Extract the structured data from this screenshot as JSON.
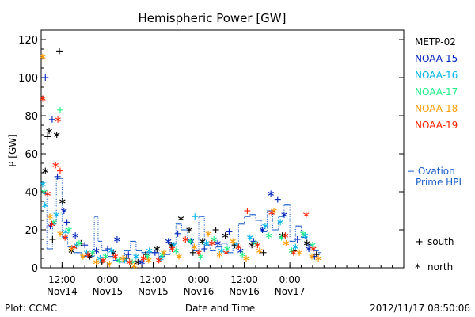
{
  "chart_data": {
    "type": "scatter",
    "title": "Hemispheric Power [GW]",
    "ylabel": "P [GW]",
    "xlabel": "Date and Time",
    "ylim": [
      0,
      125
    ],
    "yticks": [
      0,
      20,
      40,
      60,
      80,
      100,
      120
    ],
    "xlim": [
      6.5,
      102
    ],
    "xticks": [
      {
        "value": 12,
        "time": "12:00",
        "date": "Nov14"
      },
      {
        "value": 24,
        "time": "0:00",
        "date": "Nov15"
      },
      {
        "value": 36,
        "time": "12:00",
        "date": "Nov15"
      },
      {
        "value": 48,
        "time": "0:00",
        "date": "Nov16"
      },
      {
        "value": 60,
        "time": "12:00",
        "date": "Nov16"
      },
      {
        "value": 72,
        "time": "0:00",
        "date": "Nov17"
      }
    ],
    "x_units": "hours since 2012-11-14 00:00 UTC",
    "series": [
      {
        "name": "METP-02",
        "color": "#000000",
        "points": [
          {
            "x": 7.6,
            "y": 51,
            "m": "north"
          },
          {
            "x": 8.2,
            "y": 69,
            "m": "south"
          },
          {
            "x": 8.6,
            "y": 72,
            "m": "north"
          },
          {
            "x": 10.6,
            "y": 70,
            "m": "north"
          },
          {
            "x": 11.3,
            "y": 114,
            "m": "south"
          },
          {
            "x": 12.1,
            "y": 35,
            "m": "north"
          },
          {
            "x": 9.5,
            "y": 15,
            "m": "south"
          },
          {
            "x": 14.5,
            "y": 9,
            "m": "north"
          },
          {
            "x": 17,
            "y": 13,
            "m": "south"
          },
          {
            "x": 19.3,
            "y": 6,
            "m": "north"
          },
          {
            "x": 22.5,
            "y": 3,
            "m": "south"
          },
          {
            "x": 25.5,
            "y": 8,
            "m": "north"
          },
          {
            "x": 29,
            "y": 5,
            "m": "south"
          },
          {
            "x": 32,
            "y": 3,
            "m": "north"
          },
          {
            "x": 34,
            "y": 7,
            "m": "south"
          },
          {
            "x": 37,
            "y": 10,
            "m": "north"
          },
          {
            "x": 40.8,
            "y": 12,
            "m": "north"
          },
          {
            "x": 43.3,
            "y": 26,
            "m": "north"
          },
          {
            "x": 45.5,
            "y": 20,
            "m": "north"
          },
          {
            "x": 46.5,
            "y": 8,
            "m": "south"
          },
          {
            "x": 49,
            "y": 14,
            "m": "north"
          },
          {
            "x": 52.5,
            "y": 20,
            "m": "south"
          },
          {
            "x": 55,
            "y": 17,
            "m": "north"
          },
          {
            "x": 57.5,
            "y": 12,
            "m": "south"
          },
          {
            "x": 62,
            "y": 12,
            "m": "north"
          },
          {
            "x": 65,
            "y": 8,
            "m": "south"
          },
          {
            "x": 70,
            "y": 17,
            "m": "north"
          },
          {
            "x": 73,
            "y": 9,
            "m": "south"
          },
          {
            "x": 76.5,
            "y": 13,
            "m": "north"
          },
          {
            "x": 79,
            "y": 7,
            "m": "south"
          }
        ]
      },
      {
        "name": "NOAA-15",
        "color": "#0022bb",
        "points": [
          {
            "x": 7.6,
            "y": 100,
            "m": "south"
          },
          {
            "x": 9.4,
            "y": 78,
            "m": "south"
          },
          {
            "x": 10.8,
            "y": 48,
            "m": "south"
          },
          {
            "x": 8.9,
            "y": 22,
            "m": "north"
          },
          {
            "x": 12.5,
            "y": 30,
            "m": "north"
          },
          {
            "x": 13.3,
            "y": 24,
            "m": "south"
          },
          {
            "x": 15.5,
            "y": 17,
            "m": "north"
          },
          {
            "x": 18,
            "y": 12,
            "m": "south"
          },
          {
            "x": 21,
            "y": 9,
            "m": "north"
          },
          {
            "x": 24,
            "y": 10,
            "m": "south"
          },
          {
            "x": 26.5,
            "y": 15,
            "m": "north"
          },
          {
            "x": 29.5,
            "y": 7,
            "m": "south"
          },
          {
            "x": 33,
            "y": 3,
            "m": "north"
          },
          {
            "x": 36.5,
            "y": 8,
            "m": "south"
          },
          {
            "x": 40,
            "y": 14,
            "m": "north"
          },
          {
            "x": 42.5,
            "y": 18,
            "m": "south"
          },
          {
            "x": 46,
            "y": 14,
            "m": "north"
          },
          {
            "x": 49.5,
            "y": 10,
            "m": "south"
          },
          {
            "x": 53,
            "y": 13,
            "m": "north"
          },
          {
            "x": 56,
            "y": 19,
            "m": "south"
          },
          {
            "x": 59,
            "y": 9,
            "m": "north"
          },
          {
            "x": 62.5,
            "y": 14,
            "m": "south"
          },
          {
            "x": 64.8,
            "y": 20,
            "m": "north"
          },
          {
            "x": 67,
            "y": 39,
            "m": "north"
          },
          {
            "x": 68.8,
            "y": 36,
            "m": "south"
          },
          {
            "x": 70.5,
            "y": 28,
            "m": "north"
          },
          {
            "x": 74,
            "y": 15,
            "m": "south"
          },
          {
            "x": 77,
            "y": 10,
            "m": "north"
          },
          {
            "x": 78.5,
            "y": 6,
            "m": "south"
          }
        ]
      },
      {
        "name": "NOAA-16",
        "color": "#00b4e8",
        "points": [
          {
            "x": 6.9,
            "y": 44,
            "m": "north"
          },
          {
            "x": 7.5,
            "y": 33,
            "m": "north"
          },
          {
            "x": 10.5,
            "y": 28,
            "m": "north"
          },
          {
            "x": 13,
            "y": 19,
            "m": "north"
          },
          {
            "x": 15.8,
            "y": 12,
            "m": "north"
          },
          {
            "x": 18.5,
            "y": 8,
            "m": "north"
          },
          {
            "x": 22,
            "y": 5,
            "m": "north"
          },
          {
            "x": 25,
            "y": 9,
            "m": "north"
          },
          {
            "x": 28.5,
            "y": 4,
            "m": "north"
          },
          {
            "x": 31.5,
            "y": 6,
            "m": "north"
          },
          {
            "x": 35,
            "y": 9,
            "m": "north"
          },
          {
            "x": 38,
            "y": 5,
            "m": "north"
          },
          {
            "x": 41.5,
            "y": 12,
            "m": "north"
          },
          {
            "x": 47,
            "y": 27,
            "m": "south"
          },
          {
            "x": 50,
            "y": 13,
            "m": "north"
          },
          {
            "x": 54,
            "y": 9,
            "m": "north"
          },
          {
            "x": 58,
            "y": 12,
            "m": "north"
          },
          {
            "x": 61.5,
            "y": 16,
            "m": "north"
          },
          {
            "x": 65.5,
            "y": 22,
            "m": "north"
          },
          {
            "x": 69.5,
            "y": 24,
            "m": "north"
          },
          {
            "x": 73.5,
            "y": 11,
            "m": "north"
          },
          {
            "x": 76,
            "y": 17,
            "m": "north"
          }
        ]
      },
      {
        "name": "NOAA-17",
        "color": "#22ee88",
        "points": [
          {
            "x": 7.3,
            "y": 40,
            "m": "north"
          },
          {
            "x": 11.5,
            "y": 83,
            "m": "south"
          },
          {
            "x": 9.8,
            "y": 24,
            "m": "north"
          },
          {
            "x": 13.8,
            "y": 20,
            "m": "north"
          },
          {
            "x": 16.5,
            "y": 13,
            "m": "north"
          },
          {
            "x": 20,
            "y": 8,
            "m": "north"
          },
          {
            "x": 23.5,
            "y": 6,
            "m": "north"
          },
          {
            "x": 27,
            "y": 4,
            "m": "north"
          },
          {
            "x": 30.5,
            "y": 3,
            "m": "north"
          },
          {
            "x": 34.5,
            "y": 6,
            "m": "north"
          },
          {
            "x": 38.5,
            "y": 7,
            "m": "north"
          },
          {
            "x": 42,
            "y": 9,
            "m": "north"
          },
          {
            "x": 45.8,
            "y": 14,
            "m": "north"
          },
          {
            "x": 48.5,
            "y": 6,
            "m": "north"
          },
          {
            "x": 52,
            "y": 15,
            "m": "north"
          },
          {
            "x": 55.5,
            "y": 10,
            "m": "north"
          },
          {
            "x": 59.5,
            "y": 7,
            "m": "north"
          },
          {
            "x": 63,
            "y": 13,
            "m": "north"
          },
          {
            "x": 66.5,
            "y": 17,
            "m": "north"
          },
          {
            "x": 69.8,
            "y": 16,
            "m": "north"
          },
          {
            "x": 72.5,
            "y": 9,
            "m": "north"
          },
          {
            "x": 75.5,
            "y": 18,
            "m": "north"
          },
          {
            "x": 78,
            "y": 12,
            "m": "north"
          }
        ]
      },
      {
        "name": "NOAA-18",
        "color": "#ff9a00",
        "points": [
          {
            "x": 6.9,
            "y": 111,
            "m": "north"
          },
          {
            "x": 8.8,
            "y": 27,
            "m": "north"
          },
          {
            "x": 11.5,
            "y": 18,
            "m": "north"
          },
          {
            "x": 14.5,
            "y": 10,
            "m": "north"
          },
          {
            "x": 17.5,
            "y": 6,
            "m": "north"
          },
          {
            "x": 21,
            "y": 3,
            "m": "north"
          },
          {
            "x": 24.5,
            "y": 2,
            "m": "north"
          },
          {
            "x": 28,
            "y": 5,
            "m": "north"
          },
          {
            "x": 31,
            "y": 1,
            "m": "north"
          },
          {
            "x": 34.8,
            "y": 4,
            "m": "north"
          },
          {
            "x": 38.8,
            "y": 8,
            "m": "north"
          },
          {
            "x": 42.8,
            "y": 6,
            "m": "north"
          },
          {
            "x": 46.8,
            "y": 11,
            "m": "north"
          },
          {
            "x": 50.5,
            "y": 18,
            "m": "north"
          },
          {
            "x": 53.5,
            "y": 7,
            "m": "north"
          },
          {
            "x": 57,
            "y": 14,
            "m": "north"
          },
          {
            "x": 60.5,
            "y": 5,
            "m": "north"
          },
          {
            "x": 64,
            "y": 9,
            "m": "north"
          },
          {
            "x": 67.8,
            "y": 30,
            "m": "north"
          },
          {
            "x": 71,
            "y": 13,
            "m": "north"
          },
          {
            "x": 74.5,
            "y": 8,
            "m": "north"
          },
          {
            "x": 77.8,
            "y": 6,
            "m": "north"
          },
          {
            "x": 79.5,
            "y": 5,
            "m": "north"
          }
        ]
      },
      {
        "name": "NOAA-19",
        "color": "#ff2200",
        "points": [
          {
            "x": 6.9,
            "y": 89,
            "m": "north"
          },
          {
            "x": 8.2,
            "y": 39,
            "m": "north"
          },
          {
            "x": 10.3,
            "y": 54,
            "m": "north"
          },
          {
            "x": 10.9,
            "y": 78,
            "m": "north"
          },
          {
            "x": 11.5,
            "y": 51,
            "m": "south"
          },
          {
            "x": 9.3,
            "y": 23,
            "m": "north"
          },
          {
            "x": 12.8,
            "y": 16,
            "m": "north"
          },
          {
            "x": 15.2,
            "y": 11,
            "m": "north"
          },
          {
            "x": 18.8,
            "y": 7,
            "m": "north"
          },
          {
            "x": 22.8,
            "y": 4,
            "m": "north"
          },
          {
            "x": 26,
            "y": 6,
            "m": "north"
          },
          {
            "x": 29.8,
            "y": 3,
            "m": "north"
          },
          {
            "x": 33.5,
            "y": 5,
            "m": "north"
          },
          {
            "x": 37.5,
            "y": 4,
            "m": "north"
          },
          {
            "x": 41,
            "y": 10,
            "m": "north"
          },
          {
            "x": 44.5,
            "y": 15,
            "m": "north"
          },
          {
            "x": 48,
            "y": 8,
            "m": "north"
          },
          {
            "x": 51.5,
            "y": 13,
            "m": "north"
          },
          {
            "x": 55.2,
            "y": 8,
            "m": "north"
          },
          {
            "x": 58.5,
            "y": 11,
            "m": "north"
          },
          {
            "x": 60.8,
            "y": 30,
            "m": "south"
          },
          {
            "x": 63.5,
            "y": 12,
            "m": "north"
          },
          {
            "x": 67.2,
            "y": 29,
            "m": "north"
          },
          {
            "x": 70.8,
            "y": 17,
            "m": "north"
          },
          {
            "x": 73,
            "y": 8,
            "m": "north"
          },
          {
            "x": 76.3,
            "y": 28,
            "m": "north"
          },
          {
            "x": 78.2,
            "y": 10,
            "m": "north"
          }
        ]
      }
    ],
    "ovation": {
      "name": "− Ovation Prime HPI",
      "name_line1": "− Ovation",
      "name_line2": "Prime HPI",
      "color": "#1a5cc8",
      "points": [
        [
          7,
          39
        ],
        [
          8,
          10
        ],
        [
          9.5,
          23
        ],
        [
          10.5,
          47
        ],
        [
          12,
          16
        ],
        [
          13.5,
          11
        ],
        [
          15,
          8
        ],
        [
          17,
          6
        ],
        [
          19,
          6
        ],
        [
          20.5,
          27
        ],
        [
          21.5,
          14
        ],
        [
          22.5,
          9
        ],
        [
          24,
          6
        ],
        [
          25.5,
          4
        ],
        [
          27,
          3
        ],
        [
          28.5,
          9
        ],
        [
          30,
          14
        ],
        [
          31.5,
          9
        ],
        [
          33,
          8
        ],
        [
          34.5,
          8
        ],
        [
          36,
          8
        ],
        [
          37.5,
          6
        ],
        [
          39,
          7
        ],
        [
          40.5,
          13
        ],
        [
          42,
          23
        ],
        [
          43.5,
          20
        ],
        [
          45,
          14
        ],
        [
          46.5,
          9
        ],
        [
          48,
          27
        ],
        [
          49.5,
          12
        ],
        [
          51,
          9
        ],
        [
          52.5,
          11
        ],
        [
          54,
          13
        ],
        [
          55.5,
          8
        ],
        [
          57,
          13
        ],
        [
          58.5,
          23
        ],
        [
          60,
          27
        ],
        [
          61.5,
          28
        ],
        [
          63,
          25
        ],
        [
          64.5,
          19
        ],
        [
          66,
          30
        ],
        [
          67.5,
          20
        ],
        [
          69,
          27
        ],
        [
          70.5,
          33
        ],
        [
          72,
          14
        ],
        [
          73.5,
          22
        ],
        [
          75,
          16
        ],
        [
          76.5,
          12
        ],
        [
          78,
          9
        ],
        [
          79.5,
          8
        ]
      ]
    },
    "legend": {
      "placement": "right",
      "south_label": "south",
      "north_label": "north",
      "south_symbol": "+",
      "north_symbol": "*"
    }
  },
  "footer": {
    "left": "Plot: CCMC",
    "center": "Date and Time",
    "right": "2012/11/17 08:50:06"
  }
}
